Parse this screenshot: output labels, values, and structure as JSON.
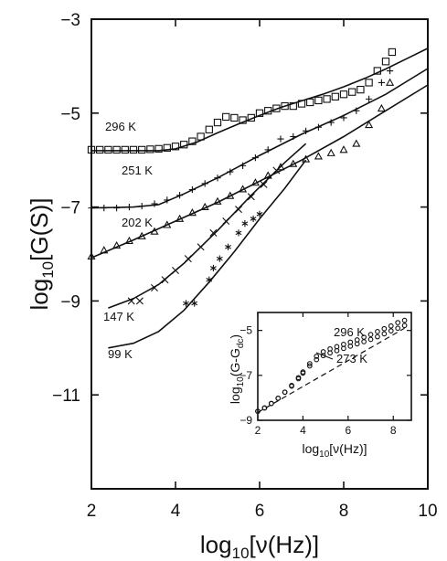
{
  "chart_data": [
    {
      "type": "scatter",
      "title": "",
      "xlabel": "log10[ν(Hz)]",
      "ylabel": "log10[G(S)]",
      "xlim": [
        2,
        10
      ],
      "ylim": [
        -13,
        -3
      ],
      "x_ticks": [
        2,
        4,
        6,
        8,
        10
      ],
      "y_ticks": [
        -3,
        -5,
        -7,
        -9,
        -11
      ],
      "grid": false,
      "series": [
        {
          "name": "296 K",
          "marker": "square",
          "x": [
            2.0,
            2.2,
            2.4,
            2.6,
            2.8,
            3.0,
            3.2,
            3.4,
            3.6,
            3.8,
            4.0,
            4.2,
            4.4,
            4.6,
            4.8,
            5.0,
            5.2,
            5.4,
            5.6,
            5.8,
            6.0,
            6.2,
            6.4,
            6.6,
            6.8,
            7.0,
            7.2,
            7.4,
            7.6,
            7.8,
            8.0,
            8.2,
            8.4,
            8.6,
            8.8,
            9.0,
            9.15
          ],
          "y": [
            -5.78,
            -5.78,
            -5.78,
            -5.78,
            -5.78,
            -5.78,
            -5.78,
            -5.77,
            -5.76,
            -5.74,
            -5.71,
            -5.67,
            -5.6,
            -5.5,
            -5.35,
            -5.2,
            -5.08,
            -5.1,
            -5.15,
            -5.1,
            -5.0,
            -4.95,
            -4.9,
            -4.85,
            -4.85,
            -4.8,
            -4.77,
            -4.73,
            -4.7,
            -4.65,
            -4.6,
            -4.55,
            -4.5,
            -4.35,
            -4.1,
            -3.9,
            -3.7
          ],
          "fit": {
            "x": [
              2.0,
              3.0,
              3.6,
              4.0,
              4.5,
              5.0,
              5.5,
              6.0,
              6.5,
              7.0,
              7.5,
              8.0,
              8.5,
              9.0,
              9.5,
              10.0
            ],
            "y": [
              -5.8,
              -5.8,
              -5.8,
              -5.76,
              -5.62,
              -5.42,
              -5.23,
              -5.05,
              -4.88,
              -4.74,
              -4.6,
              -4.44,
              -4.26,
              -4.06,
              -3.84,
              -3.62
            ]
          }
        },
        {
          "name": "251 K",
          "marker": "plus",
          "x": [
            2.0,
            2.3,
            2.6,
            2.9,
            3.2,
            3.5,
            3.8,
            4.1,
            4.4,
            4.7,
            5.0,
            5.3,
            5.6,
            5.9,
            6.2,
            6.5,
            6.8,
            7.1,
            7.4,
            7.7,
            8.0,
            8.3,
            8.6,
            8.9,
            9.1
          ],
          "y": [
            -7.02,
            -7.02,
            -7.02,
            -7.0,
            -6.98,
            -6.93,
            -6.85,
            -6.75,
            -6.63,
            -6.5,
            -6.38,
            -6.25,
            -6.12,
            -5.95,
            -5.78,
            -5.55,
            -5.5,
            -5.38,
            -5.3,
            -5.2,
            -5.1,
            -4.95,
            -4.7,
            -4.35,
            -4.1
          ]
        },
        {
          "name": "202 K",
          "marker": "triangle",
          "x": [
            2.0,
            2.3,
            2.6,
            2.9,
            3.2,
            3.5,
            3.8,
            4.1,
            4.4,
            4.7,
            5.0,
            5.3,
            5.6,
            5.9,
            6.2,
            6.5,
            6.8,
            7.1,
            7.4,
            7.7,
            8.0,
            8.3,
            8.6,
            8.9,
            9.1
          ],
          "y": [
            -8.05,
            -7.92,
            -7.82,
            -7.72,
            -7.62,
            -7.52,
            -7.38,
            -7.25,
            -7.12,
            -7.0,
            -6.88,
            -6.76,
            -6.62,
            -6.48,
            -6.33,
            -6.15,
            -6.08,
            -5.98,
            -5.92,
            -5.85,
            -5.78,
            -5.65,
            -5.25,
            -4.9,
            -4.35
          ]
        },
        {
          "name": "147 K",
          "marker": "cross",
          "x": [
            2.95,
            3.15,
            3.5,
            3.75,
            4.0,
            4.3,
            4.6,
            4.9,
            5.2,
            5.5,
            5.8,
            6.1,
            6.4
          ],
          "y": [
            -9.0,
            -9.0,
            -8.72,
            -8.55,
            -8.35,
            -8.1,
            -7.85,
            -7.55,
            -7.3,
            -7.05,
            -6.78,
            -6.52,
            -6.22
          ]
        },
        {
          "name": "99 K",
          "marker": "asterisk",
          "x": [
            4.25,
            4.45,
            4.8,
            4.9,
            5.05,
            5.25,
            5.5,
            5.65,
            5.85,
            6.0
          ],
          "y": [
            -9.05,
            -9.05,
            -8.55,
            -8.3,
            -8.1,
            -7.85,
            -7.55,
            -7.35,
            -7.25,
            -7.15
          ]
        }
      ]
    },
    {
      "type": "scatter",
      "title": "",
      "xlabel": "log10[ν(Hz)]",
      "ylabel": "log10(G−Gdc)",
      "xlim": [
        2,
        8.8
      ],
      "ylim": [
        -9,
        -4.2
      ],
      "x_ticks": [
        2,
        4,
        6,
        8
      ],
      "y_ticks": [
        -5,
        -7,
        -9
      ],
      "series": [
        {
          "name": "296 K",
          "marker": "circle",
          "x": [
            2.0,
            2.3,
            2.6,
            2.9,
            3.2,
            3.5,
            3.8,
            4.0,
            4.3,
            4.6,
            4.9,
            5.2,
            5.5,
            5.8,
            6.1,
            6.4,
            6.7,
            7.0,
            7.3,
            7.6,
            7.9,
            8.2,
            8.5
          ],
          "y": [
            -8.6,
            -8.45,
            -8.25,
            -8.02,
            -7.75,
            -7.45,
            -7.1,
            -6.85,
            -6.48,
            -6.15,
            -5.95,
            -5.82,
            -5.72,
            -5.62,
            -5.52,
            -5.42,
            -5.3,
            -5.18,
            -5.05,
            -4.92,
            -4.8,
            -4.65,
            -4.55
          ]
        },
        {
          "name": "273 K",
          "marker": "circle",
          "x": [
            2.0,
            2.3,
            2.6,
            2.9,
            3.2,
            3.5,
            3.8,
            4.0,
            4.3,
            4.6,
            4.9,
            5.2,
            5.5,
            5.8,
            6.1,
            6.4,
            6.7,
            7.0,
            7.3,
            7.6,
            7.9,
            8.2,
            8.5
          ],
          "y": [
            -8.6,
            -8.45,
            -8.25,
            -8.02,
            -7.75,
            -7.48,
            -7.15,
            -6.9,
            -6.58,
            -6.3,
            -6.12,
            -6.0,
            -5.9,
            -5.8,
            -5.7,
            -5.6,
            -5.5,
            -5.4,
            -5.28,
            -5.15,
            -5.02,
            -4.9,
            -4.78
          ]
        }
      ],
      "dashed_line": {
        "x": [
          2.0,
          8.5
        ],
        "y": [
          -8.65,
          -4.9
        ]
      }
    }
  ],
  "main_labels": {
    "y_prefix": "log",
    "y_sub": "10",
    "y_suffix": "[G(S)]",
    "x_prefix": "log",
    "x_sub": "10",
    "x_suffix": "[ν(Hz)]"
  },
  "inset_labels": {
    "y_prefix": "log",
    "y_sub": "10",
    "y_mid": "(G-G",
    "y_sub2": "dc",
    "y_suffix": ")",
    "x_prefix": "log",
    "x_sub": "10",
    "x_suffix": "[ν(Hz)]"
  },
  "colors": {
    "ink": "#111111",
    "background": "#ffffff"
  }
}
